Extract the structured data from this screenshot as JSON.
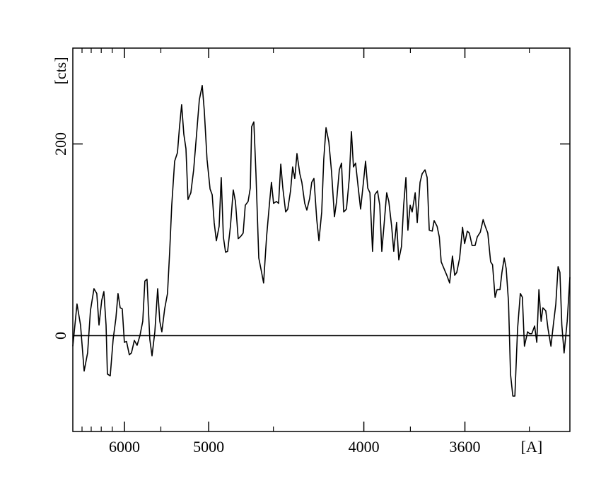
{
  "chart_data": {
    "type": "line",
    "xlabel": "[A]",
    "ylabel": "[cts]",
    "xscale": "inverse-square",
    "xlim": [
      7020,
      3290
    ],
    "ylim": [
      -100,
      300
    ],
    "xticks": [
      6000,
      5000,
      4000,
      3600
    ],
    "xminorticks": [
      6800,
      6600,
      6400,
      6200,
      5500,
      4500,
      3800,
      3400
    ],
    "yticks": [
      0,
      200
    ],
    "hline": 0,
    "color": "#000000",
    "x": [
      7020,
      6917,
      6835,
      6753,
      6677,
      6616,
      6543,
      6487,
      6444,
      6391,
      6351,
      6311,
      6286,
      6236,
      6186,
      6139,
      6103,
      6068,
      6035,
      6001,
      5968,
      5925,
      5893,
      5851,
      5811,
      5771,
      5732,
      5703,
      5675,
      5638,
      5610,
      5574,
      5539,
      5513,
      5488,
      5454,
      5421,
      5396,
      5373,
      5341,
      5310,
      5288,
      5265,
      5242,
      5220,
      5199,
      5170,
      5142,
      5114,
      5087,
      5060,
      5041,
      5015,
      4988,
      4969,
      4951,
      4932,
      4908,
      4890,
      4872,
      4854,
      4837,
      4814,
      4791,
      4774,
      4752,
      4730,
      4714,
      4698,
      4677,
      4661,
      4651,
      4635,
      4620,
      4600,
      4580,
      4566,
      4546,
      4527,
      4513,
      4499,
      4480,
      4466,
      4452,
      4439,
      4421,
      4408,
      4391,
      4378,
      4365,
      4352,
      4335,
      4323,
      4306,
      4294,
      4278,
      4266,
      4254,
      4238,
      4226,
      4211,
      4200,
      4188,
      4173,
      4159,
      4144,
      4133,
      4119,
      4108,
      4097,
      4083,
      4069,
      4059,
      4049,
      4039,
      4025,
      4015,
      4002,
      3992,
      3982,
      3972,
      3960,
      3950,
      3938,
      3928,
      3919,
      3910,
      3898,
      3889,
      3877,
      3868,
      3856,
      3847,
      3836,
      3827,
      3818,
      3810,
      3801,
      3793,
      3781,
      3773,
      3762,
      3754,
      3743,
      3735,
      3727,
      3716,
      3709,
      3698,
      3690,
      3683,
      3673,
      3663,
      3653,
      3643,
      3635,
      3628,
      3618,
      3608,
      3601,
      3592,
      3585,
      3576,
      3566,
      3559,
      3549,
      3540,
      3533,
      3525,
      3516,
      3510,
      3502,
      3496,
      3487,
      3481,
      3474,
      3468,
      3461,
      3455,
      3448,
      3442,
      3434,
      3426,
      3420,
      3414,
      3405,
      3399,
      3393,
      3385,
      3379,
      3373,
      3367,
      3362,
      3354,
      3348,
      3340,
      3334,
      3327,
      3321,
      3316,
      3311,
      3305,
      3297,
      3290
    ],
    "values": [
      -11,
      33,
      11,
      -37,
      -18,
      26,
      49,
      44,
      11,
      37,
      46,
      11,
      -40,
      -42,
      -4,
      18,
      44,
      29,
      28,
      -7,
      -6,
      -20,
      -18,
      -5,
      -10,
      0,
      15,
      57,
      59,
      -4,
      -21,
      4,
      49,
      15,
      4,
      28,
      44,
      88,
      136,
      182,
      191,
      217,
      241,
      210,
      195,
      142,
      149,
      173,
      210,
      246,
      261,
      235,
      184,
      153,
      147,
      118,
      99,
      114,
      165,
      103,
      87,
      88,
      114,
      152,
      140,
      101,
      104,
      107,
      136,
      140,
      154,
      218,
      223,
      169,
      81,
      66,
      55,
      103,
      136,
      160,
      138,
      140,
      138,
      179,
      154,
      129,
      132,
      151,
      176,
      164,
      190,
      169,
      160,
      138,
      131,
      143,
      160,
      164,
      121,
      99,
      129,
      184,
      217,
      202,
      171,
      124,
      140,
      173,
      180,
      129,
      132,
      165,
      213,
      176,
      180,
      152,
      132,
      160,
      182,
      154,
      149,
      88,
      147,
      151,
      136,
      88,
      114,
      149,
      140,
      114,
      88,
      118,
      79,
      93,
      136,
      165,
      110,
      136,
      129,
      149,
      118,
      160,
      169,
      173,
      165,
      110,
      109,
      120,
      114,
      103,
      77,
      70,
      63,
      55,
      83,
      63,
      66,
      81,
      113,
      96,
      109,
      107,
      94,
      94,
      103,
      108,
      121,
      114,
      107,
      77,
      74,
      40,
      48,
      48,
      66,
      81,
      70,
      35,
      -40,
      -63,
      -63,
      7,
      44,
      40,
      -11,
      4,
      2,
      2,
      10,
      -7,
      48,
      15,
      29,
      26,
      7,
      -11,
      10,
      33,
      72,
      66,
      11,
      -18,
      15,
      61
    ]
  }
}
